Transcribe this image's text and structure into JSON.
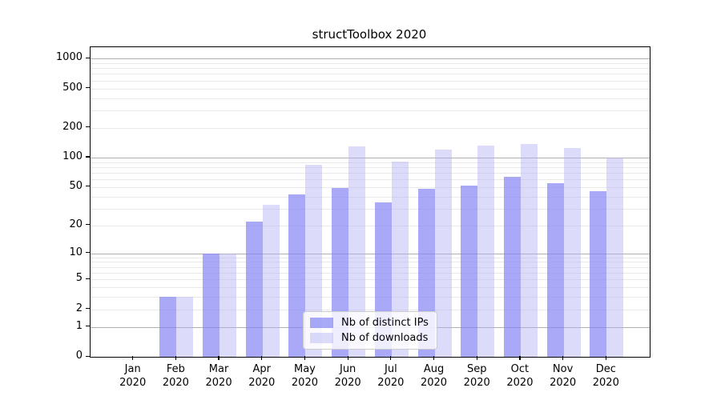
{
  "chart_data": {
    "type": "bar",
    "title": "structToolbox 2020",
    "x_categories": [
      "Jan",
      "Feb",
      "Mar",
      "Apr",
      "May",
      "Jun",
      "Jul",
      "Aug",
      "Sep",
      "Oct",
      "Nov",
      "Dec"
    ],
    "x_year": "2020",
    "series": [
      {
        "name": "Nb of distinct IPs",
        "key": "distinct-ips",
        "color": "rgba(132,132,244,0.7)",
        "values": [
          0,
          3,
          10,
          22,
          42,
          49,
          35,
          48,
          52,
          64,
          55,
          45
        ]
      },
      {
        "name": "Nb of downloads",
        "key": "downloads",
        "color": "rgba(177,177,244,0.45)",
        "values": [
          0,
          3,
          10,
          33,
          84,
          130,
          91,
          120,
          131,
          137,
          125,
          100
        ]
      }
    ],
    "y_scale": "log1p",
    "ylim": [
      0,
      1300
    ],
    "y_ticks": [
      0,
      1,
      2,
      5,
      10,
      20,
      50,
      100,
      200,
      500,
      1000
    ],
    "y_major_gridlines": [
      1,
      10,
      100,
      1000
    ],
    "y_minor_gridlines": [
      2,
      3,
      4,
      5,
      6,
      7,
      8,
      9,
      20,
      30,
      40,
      50,
      60,
      70,
      80,
      90,
      200,
      300,
      400,
      500,
      600,
      700,
      800,
      900
    ],
    "grid_color_major": "#b0b0b0",
    "grid_color_minor": "#e9e9e9",
    "legend_position": "lower-center"
  }
}
